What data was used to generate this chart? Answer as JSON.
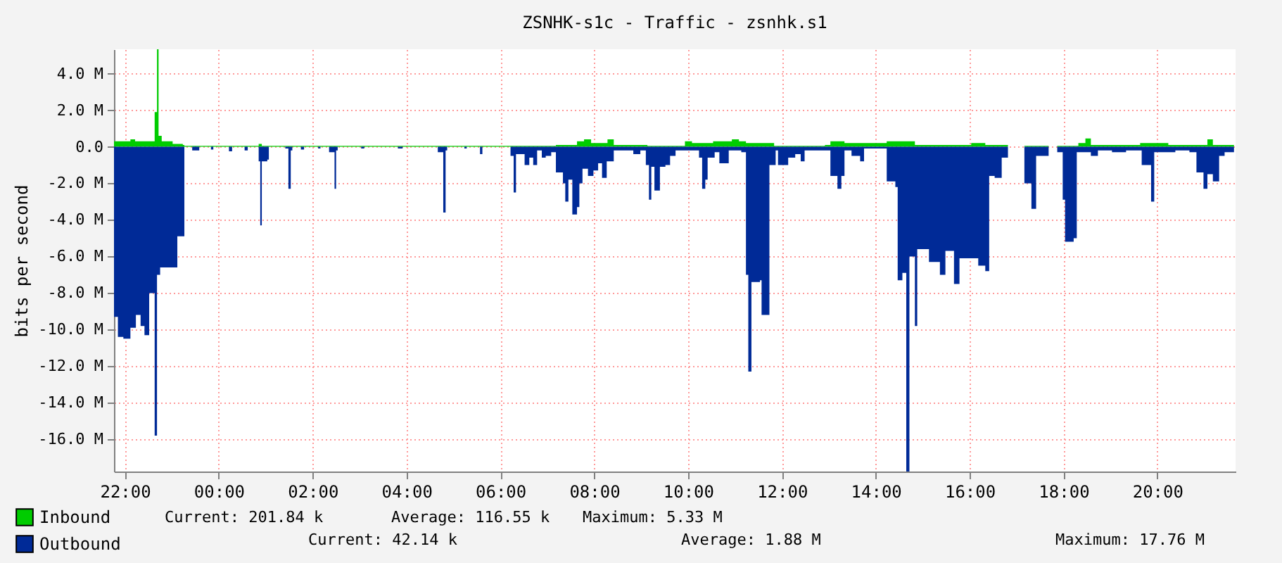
{
  "chart_data": {
    "type": "area",
    "title": "ZSNHK-s1c - Traffic - zsnhk.s1",
    "ylabel": "bits per second",
    "xlim": [
      "2000-01-01T21:46",
      "2000-01-02T21:40"
    ],
    "xticks": [
      {
        "value": "2000-01-01T22:00",
        "label": "22:00"
      },
      {
        "value": "2000-01-02T00:00",
        "label": "00:00"
      },
      {
        "value": "2000-01-02T02:00",
        "label": "02:00"
      },
      {
        "value": "2000-01-02T04:00",
        "label": "04:00"
      },
      {
        "value": "2000-01-02T06:00",
        "label": "06:00"
      },
      {
        "value": "2000-01-02T08:00",
        "label": "08:00"
      },
      {
        "value": "2000-01-02T10:00",
        "label": "10:00"
      },
      {
        "value": "2000-01-02T12:00",
        "label": "12:00"
      },
      {
        "value": "2000-01-02T14:00",
        "label": "14:00"
      },
      {
        "value": "2000-01-02T16:00",
        "label": "16:00"
      },
      {
        "value": "2000-01-02T18:00",
        "label": "18:00"
      },
      {
        "value": "2000-01-02T20:00",
        "label": "20:00"
      }
    ],
    "ylim": [
      -17.76,
      5.33
    ],
    "yticks": [
      {
        "value": -16,
        "label": "-16.0 M"
      },
      {
        "value": -14,
        "label": "-14.0 M"
      },
      {
        "value": -12,
        "label": "-12.0 M"
      },
      {
        "value": -10,
        "label": "-10.0 M"
      },
      {
        "value": -8,
        "label": "-8.0 M"
      },
      {
        "value": -6,
        "label": "-6.0 M"
      },
      {
        "value": -4,
        "label": "-4.0 M"
      },
      {
        "value": -2,
        "label": "-2.0 M"
      },
      {
        "value": 0,
        "label": "0.0"
      },
      {
        "value": 2,
        "label": "2.0 M"
      },
      {
        "value": 4,
        "label": "4.0 M"
      }
    ],
    "grid": true,
    "legend": "bottom left",
    "series": [
      {
        "name": "Inbound",
        "color": "#00cc00",
        "x": [
          "2000-01-01T21:46",
          "2000-01-01T22:07",
          "2000-01-01T22:13",
          "2000-01-01T22:34",
          "2000-01-01T22:38",
          "2000-01-01T22:40",
          "2000-01-01T22:41",
          "2000-01-01T22:43",
          "2000-01-01T22:47",
          "2000-01-01T22:59",
          "2000-01-01T23:01",
          "2000-01-01T23:14",
          "2000-01-01T23:16",
          "2000-01-02T00:51",
          "2000-01-02T00:55",
          "2000-01-02T07:11",
          "2000-01-02T07:38",
          "2000-01-02T07:47",
          "2000-01-02T07:56",
          "2000-01-02T08:17",
          "2000-01-02T08:25",
          "2000-01-02T09:08",
          "2000-01-02T09:56",
          "2000-01-02T10:05",
          "2000-01-02T10:32",
          "2000-01-02T10:56",
          "2000-01-02T11:05",
          "2000-01-02T11:14",
          "2000-01-02T11:50",
          "2000-01-02T12:55",
          "2000-01-02T13:02",
          "2000-01-02T13:20",
          "2000-01-02T14:14",
          "2000-01-02T14:32",
          "2000-01-02T14:50",
          "2000-01-02T16:02",
          "2000-01-02T16:20",
          "2000-01-02T16:49",
          "2000-01-02T16:56",
          "2000-01-02T17:10",
          "2000-01-02T17:41",
          "2000-01-02T17:48",
          "2000-01-02T17:52",
          "2000-01-02T18:19",
          "2000-01-02T18:28",
          "2000-01-02T18:35",
          "2000-01-02T19:20",
          "2000-01-02T19:38",
          "2000-01-02T20:14",
          "2000-01-02T21:04",
          "2000-01-02T21:11",
          "2000-01-02T21:38"
        ],
        "values": [
          0.3,
          0.4,
          0.3,
          0.3,
          1.9,
          1.9,
          5.33,
          0.6,
          0.3,
          0.3,
          0.15,
          0.1,
          0.05,
          0.15,
          0.05,
          0.1,
          0.3,
          0.4,
          0.2,
          0.4,
          0.1,
          0.05,
          0.3,
          0.2,
          0.3,
          0.4,
          0.3,
          0.2,
          0.05,
          0.1,
          0.3,
          0.2,
          0.3,
          0.3,
          0.1,
          0.2,
          0.1,
          0.05,
          null,
          0.05,
          0.05,
          null,
          0.05,
          0.2,
          0.45,
          0.1,
          0.1,
          0.2,
          0.1,
          0.4,
          0.1,
          0.2
        ]
      },
      {
        "name": "Outbound",
        "color": "#002a97",
        "x": [
          "2000-01-01T21:46",
          "2000-01-01T21:51",
          "2000-01-01T21:58",
          "2000-01-01T22:05",
          "2000-01-01T22:07",
          "2000-01-01T22:13",
          "2000-01-01T22:14",
          "2000-01-01T22:20",
          "2000-01-01T22:25",
          "2000-01-01T22:29",
          "2000-01-01T22:31",
          "2000-01-01T22:36",
          "2000-01-01T22:38",
          "2000-01-01T22:40",
          "2000-01-01T22:41",
          "2000-01-01T22:45",
          "2000-01-01T23:05",
          "2000-01-01T23:07",
          "2000-01-01T23:14",
          "2000-01-01T23:16",
          "2000-01-01T23:26",
          "2000-01-01T23:35",
          "2000-01-01T23:50",
          "2000-01-01T23:53",
          "2000-01-02T00:13",
          "2000-01-02T00:17",
          "2000-01-02T00:33",
          "2000-01-02T00:37",
          "2000-01-02T00:51",
          "2000-01-02T00:53",
          "2000-01-02T00:55",
          "2000-01-02T01:02",
          "2000-01-02T01:04",
          "2000-01-02T01:25",
          "2000-01-02T01:29",
          "2000-01-02T01:32",
          "2000-01-02T01:34",
          "2000-01-02T01:45",
          "2000-01-02T01:49",
          "2000-01-02T02:07",
          "2000-01-02T02:10",
          "2000-01-02T02:21",
          "2000-01-02T02:28",
          "2000-01-02T02:30",
          "2000-01-02T02:32",
          "2000-01-02T03:02",
          "2000-01-02T03:06",
          "2000-01-02T03:49",
          "2000-01-02T03:55",
          "2000-01-02T04:40",
          "2000-01-02T04:47",
          "2000-01-02T04:50",
          "2000-01-02T04:52",
          "2000-01-02T05:14",
          "2000-01-02T05:17",
          "2000-01-02T05:34",
          "2000-01-02T05:37",
          "2000-01-02T06:13",
          "2000-01-02T06:17",
          "2000-01-02T06:20",
          "2000-01-02T06:31",
          "2000-01-02T06:37",
          "2000-01-02T06:42",
          "2000-01-02T06:47",
          "2000-01-02T06:53",
          "2000-01-02T06:58",
          "2000-01-02T07:05",
          "2000-01-02T07:11",
          "2000-01-02T07:20",
          "2000-01-02T07:23",
          "2000-01-02T07:27",
          "2000-01-02T07:32",
          "2000-01-02T07:36",
          "2000-01-02T07:38",
          "2000-01-02T07:41",
          "2000-01-02T07:45",
          "2000-01-02T07:52",
          "2000-01-02T07:59",
          "2000-01-02T08:05",
          "2000-01-02T08:10",
          "2000-01-02T08:16",
          "2000-01-02T08:25",
          "2000-01-02T08:41",
          "2000-01-02T08:50",
          "2000-01-02T08:59",
          "2000-01-02T09:06",
          "2000-01-02T09:10",
          "2000-01-02T09:13",
          "2000-01-02T09:17",
          "2000-01-02T09:20",
          "2000-01-02T09:24",
          "2000-01-02T09:31",
          "2000-01-02T09:37",
          "2000-01-02T09:44",
          "2000-01-02T10:14",
          "2000-01-02T10:18",
          "2000-01-02T10:22",
          "2000-01-02T10:25",
          "2000-01-02T10:34",
          "2000-01-02T10:40",
          "2000-01-02T10:49",
          "2000-01-02T10:52",
          "2000-01-02T11:08",
          "2000-01-02T11:14",
          "2000-01-02T11:17",
          "2000-01-02T11:21",
          "2000-01-02T11:32",
          "2000-01-02T11:34",
          "2000-01-02T11:43",
          "2000-01-02T11:44",
          "2000-01-02T11:52",
          "2000-01-02T11:55",
          "2000-01-02T12:02",
          "2000-01-02T12:08",
          "2000-01-02T12:17",
          "2000-01-02T12:24",
          "2000-01-02T12:29",
          "2000-01-02T13:02",
          "2000-01-02T13:11",
          "2000-01-02T13:16",
          "2000-01-02T13:20",
          "2000-01-02T13:29",
          "2000-01-02T13:40",
          "2000-01-02T13:45",
          "2000-01-02T14:14",
          "2000-01-02T14:25",
          "2000-01-02T14:28",
          "2000-01-02T14:34",
          "2000-01-02T14:39",
          "2000-01-02T14:43",
          "2000-01-02T14:50",
          "2000-01-02T14:53",
          "2000-01-02T15:08",
          "2000-01-02T15:22",
          "2000-01-02T15:29",
          "2000-01-02T15:40",
          "2000-01-02T15:47",
          "2000-01-02T16:02",
          "2000-01-02T16:11",
          "2000-01-02T16:20",
          "2000-01-02T16:25",
          "2000-01-02T16:32",
          "2000-01-02T16:41",
          "2000-01-02T16:49",
          "2000-01-02T16:56",
          "2000-01-02T17:10",
          "2000-01-02T17:19",
          "2000-01-02T17:25",
          "2000-01-02T17:41",
          "2000-01-02T17:48",
          "2000-01-02T17:52",
          "2000-01-02T17:59",
          "2000-01-02T18:02",
          "2000-01-02T18:08",
          "2000-01-02T18:13",
          "2000-01-02T18:17",
          "2000-01-02T18:35",
          "2000-01-02T18:44",
          "2000-01-02T19:02",
          "2000-01-02T19:20",
          "2000-01-02T19:40",
          "2000-01-02T19:52",
          "2000-01-02T19:56",
          "2000-01-02T20:23",
          "2000-01-02T20:41",
          "2000-01-02T20:50",
          "2000-01-02T20:59",
          "2000-01-02T21:04",
          "2000-01-02T21:11",
          "2000-01-02T21:19",
          "2000-01-02T21:26",
          "2000-01-02T21:38"
        ],
        "values": [
          -9.3,
          -10.4,
          -10.5,
          -10.5,
          -9.9,
          -9.9,
          -9.2,
          -9.8,
          -10.3,
          -10.3,
          -8.0,
          -8.0,
          -15.8,
          -15.8,
          -7.0,
          -6.6,
          -6.6,
          -4.9,
          -4.9,
          0,
          -0.2,
          0,
          -0.15,
          0,
          -0.25,
          0,
          -0.2,
          0,
          -0.8,
          -4.3,
          -0.8,
          -0.7,
          0,
          -0.1,
          -2.3,
          -0.2,
          0,
          -0.15,
          0,
          -0.1,
          0,
          -0.3,
          -2.3,
          -0.2,
          0,
          -0.1,
          0,
          -0.1,
          0,
          -0.3,
          -3.6,
          -0.2,
          0,
          -0.1,
          0,
          -0.4,
          0,
          -0.5,
          -2.5,
          -0.4,
          -1.0,
          -0.6,
          -1.0,
          -0.2,
          -0.6,
          -0.5,
          -0.3,
          -1.4,
          -2.0,
          -3.0,
          -1.8,
          -3.7,
          -3.7,
          -3.3,
          -2.0,
          -1.2,
          -1.6,
          -1.3,
          -0.9,
          -1.7,
          -0.8,
          -0.2,
          -0.2,
          -0.4,
          -0.2,
          -1.0,
          -2.9,
          -1.1,
          -2.4,
          -2.4,
          -1.1,
          -1.0,
          -0.5,
          -0.2,
          -0.6,
          -2.3,
          -1.8,
          -0.6,
          -0.3,
          -0.9,
          -0.9,
          -0.2,
          -0.3,
          -7.0,
          -12.3,
          -7.4,
          -7.3,
          -9.2,
          -9.2,
          -1.0,
          -0.2,
          -1.0,
          -1.0,
          -0.6,
          -0.4,
          -0.8,
          -0.2,
          -1.6,
          -2.3,
          -1.6,
          -0.2,
          -0.5,
          -0.8,
          -0.1,
          -1.9,
          -2.2,
          -7.3,
          -6.9,
          -17.76,
          -6.0,
          -9.8,
          -5.6,
          -6.3,
          -7.0,
          -5.7,
          -7.5,
          -6.1,
          -6.1,
          -6.5,
          -6.8,
          -1.6,
          -1.7,
          -0.6,
          -0.3,
          null,
          -2.0,
          -3.4,
          -0.5,
          -0.3,
          null,
          -0.3,
          -2.9,
          -5.2,
          -5.2,
          -5.0,
          -0.3,
          -0.5,
          -0.2,
          -0.3,
          -0.2,
          -1.0,
          -3.0,
          -0.3,
          -0.2,
          -0.3,
          -1.4,
          -2.3,
          -1.5,
          -1.9,
          -0.5,
          -0.3,
          -0.1
        ]
      }
    ],
    "annotations": [
      "Current: 201.84 k",
      "Average: 116.55 k",
      "Maximum: 5.33 M",
      "Current: 42.14 k",
      "Average: 1.88 M",
      "Maximum: 17.76 M"
    ]
  }
}
